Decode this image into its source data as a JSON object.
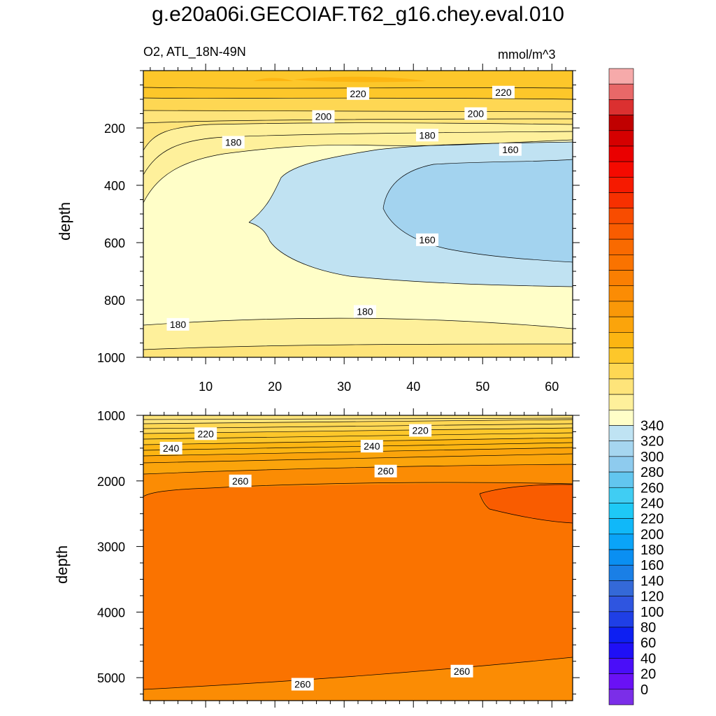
{
  "title": "g.e20a06i.GECOIAF.T62_g16.chey.eval.010",
  "subtitle_left": "O2, ATL_18N-49N",
  "subtitle_right": "mmol/m^3",
  "colors": {
    "c160": "#a3d3ef",
    "c170": "#c0e2f2",
    "c180": "#fffec8",
    "c190": "#fef09b",
    "c200": "#fee47a",
    "c210": "#fed753",
    "c220": "#fdc72a",
    "c230": "#fcb512",
    "c240": "#fba40b",
    "c250": "#fb8c04",
    "c260": "#fa7300",
    "c270": "#f95c00",
    "c280": "#f74100"
  },
  "chart_data": [
    {
      "type": "contour",
      "panel": "upper",
      "xlabel": "",
      "ylabel": "depth",
      "xlim": [
        1,
        63
      ],
      "ylim": [
        1000,
        0
      ],
      "xticks": [
        10,
        20,
        30,
        40,
        50,
        60
      ],
      "yticks": [
        200,
        400,
        600,
        800,
        1000
      ],
      "contour_labels": [
        {
          "value": "220",
          "x": 32,
          "depth": 80
        },
        {
          "value": "220",
          "x": 53,
          "depth": 75
        },
        {
          "value": "200",
          "x": 27,
          "depth": 160
        },
        {
          "value": "200",
          "x": 49,
          "depth": 150
        },
        {
          "value": "180",
          "x": 14,
          "depth": 250
        },
        {
          "value": "180",
          "x": 42,
          "depth": 225
        },
        {
          "value": "160",
          "x": 54,
          "depth": 275
        },
        {
          "value": "160",
          "x": 42,
          "depth": 590
        },
        {
          "value": "180",
          "x": 6,
          "depth": 885
        },
        {
          "value": "180",
          "x": 33,
          "depth": 840
        }
      ]
    },
    {
      "type": "contour",
      "panel": "lower",
      "xlabel": "",
      "ylabel": "depth",
      "xlim": [
        1,
        63
      ],
      "ylim": [
        5350,
        1000
      ],
      "xticks": [
        10,
        20,
        30,
        40,
        50,
        60
      ],
      "yticks": [
        1000,
        2000,
        3000,
        4000,
        5000
      ],
      "contour_labels": [
        {
          "value": "220",
          "x": 10,
          "depth": 1280
        },
        {
          "value": "220",
          "x": 41,
          "depth": 1230
        },
        {
          "value": "240",
          "x": 5,
          "depth": 1500
        },
        {
          "value": "240",
          "x": 34,
          "depth": 1470
        },
        {
          "value": "260",
          "x": 15,
          "depth": 2000
        },
        {
          "value": "260",
          "x": 36,
          "depth": 1850
        },
        {
          "value": "260",
          "x": 24,
          "depth": 5100
        },
        {
          "value": "260",
          "x": 47,
          "depth": 4900
        }
      ]
    },
    {
      "type": "colorbar",
      "levels": [
        0,
        20,
        40,
        60,
        80,
        100,
        120,
        140,
        160,
        180,
        200,
        220,
        240,
        260,
        280,
        300,
        320,
        340
      ],
      "labels": [
        "0",
        "20",
        "40",
        "60",
        "80",
        "100",
        "120",
        "140",
        "160",
        "180",
        "200",
        "220",
        "240",
        "260",
        "280",
        "300",
        "320",
        "340"
      ],
      "box_colors": [
        "#7b2ee8",
        "#6a11f5",
        "#4a0ef8",
        "#1f10f6",
        "#0d1ff2",
        "#1f3fe6",
        "#2f55e0",
        "#3469d8",
        "#1a7fe6",
        "#0a8ff2",
        "#0aa4f8",
        "#10b8f9",
        "#1ec9f6",
        "#40cdf3",
        "#62c6ef",
        "#8ecbee",
        "#a6d6f0",
        "#bfe3f3",
        "#fffec8",
        "#fef09b",
        "#fee47a",
        "#fed753",
        "#fdc72a",
        "#fcb512",
        "#fba40b",
        "#f99808",
        "#fb8c04",
        "#fa7f02",
        "#fa7300",
        "#f96a00",
        "#f95c00",
        "#f84c00",
        "#f73000",
        "#f61a00",
        "#f50a00",
        "#ea0000",
        "#d50000",
        "#c00000",
        "#db3030",
        "#e86868",
        "#f6aaaa"
      ]
    }
  ]
}
